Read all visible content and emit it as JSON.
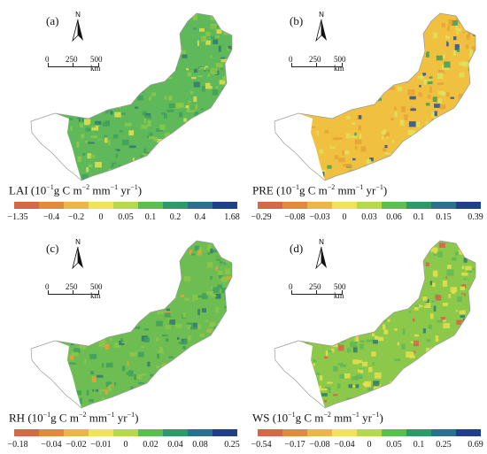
{
  "panels": [
    {
      "id": "a",
      "label": "(a)",
      "variable": "LAI",
      "unit_prefix": "(10",
      "unit_exp1": "−1",
      "unit_mid": "g C m",
      "unit_exp2": "−2",
      "unit_mm": " mm",
      "unit_exp3": "−1",
      "unit_yr": " yr",
      "unit_exp4": "−1",
      "unit_close": ")",
      "legend_ticks": [
        "−1.35",
        "−0.4",
        "−0.2",
        "0",
        "0.05",
        "0.1",
        "0.2",
        "0.4",
        "1.68"
      ],
      "dominant_colors": [
        "#5fb85a",
        "#3ea05d",
        "#8cc84a"
      ],
      "accent_colors": [
        "#2f7a6d",
        "#e8e14b"
      ]
    },
    {
      "id": "b",
      "label": "(b)",
      "variable": "PRE",
      "unit_prefix": "(10",
      "unit_exp1": "−1",
      "unit_mid": "g C m",
      "unit_exp2": "−2",
      "unit_mm": " mm",
      "unit_exp3": "−1",
      "unit_yr": " yr",
      "unit_exp4": "−1",
      "unit_close": ")",
      "legend_ticks": [
        "−0.29",
        "−0.08",
        "−0.03",
        "0",
        "0.03",
        "0.06",
        "0.1",
        "0.15",
        "0.39"
      ],
      "dominant_colors": [
        "#f0c040",
        "#e8a23a",
        "#dfe25a"
      ],
      "accent_colors": [
        "#2a4f9a",
        "#3ea05d"
      ]
    },
    {
      "id": "c",
      "label": "(c)",
      "variable": "RH",
      "unit_prefix": "(10",
      "unit_exp1": "−1",
      "unit_mid": "g C m",
      "unit_exp2": "−2",
      "unit_mm": " mm",
      "unit_exp3": "−1",
      "unit_yr": " yr",
      "unit_exp4": "−1",
      "unit_close": ")",
      "legend_ticks": [
        "−0.18",
        "−0.04",
        "−0.02",
        "−0.01",
        "0",
        "0.02",
        "0.04",
        "0.08",
        "0.25"
      ],
      "dominant_colors": [
        "#6dbd52",
        "#8cc84a",
        "#3ea05d"
      ],
      "accent_colors": [
        "#e8a23a",
        "#2f7a6d"
      ]
    },
    {
      "id": "d",
      "label": "(d)",
      "variable": "WS",
      "unit_prefix": "(10",
      "unit_exp1": "−1",
      "unit_mid": "g C m",
      "unit_exp2": "−2",
      "unit_mm": " mm",
      "unit_exp3": "−1",
      "unit_yr": " yr",
      "unit_exp4": "−1",
      "unit_close": ")",
      "legend_ticks": [
        "−0.54",
        "−0.17",
        "−0.08",
        "−0.04",
        "0",
        "0.05",
        "0.1",
        "0.25",
        "0.69"
      ],
      "dominant_colors": [
        "#8cc84a",
        "#5fb85a",
        "#e8e14b"
      ],
      "accent_colors": [
        "#d9614a",
        "#2f7a6d"
      ]
    }
  ],
  "scale_bar": {
    "ticks": [
      "0",
      "250",
      "500 km"
    ]
  },
  "north_arrow": {
    "letter": "N",
    "icon": "north-arrow-icon"
  },
  "legend_colors": [
    "#d4694a",
    "#e08a3c",
    "#eab648",
    "#f0e35a",
    "#b5d94a",
    "#5cbd52",
    "#2e9a6a",
    "#2d6f8f",
    "#1f3f86"
  ]
}
